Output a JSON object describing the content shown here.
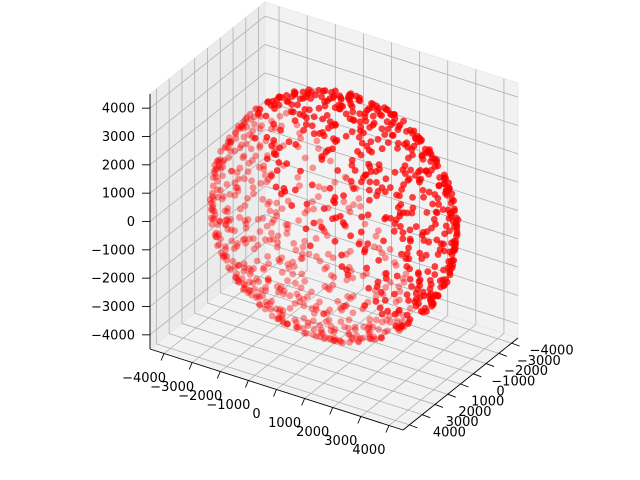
{
  "chart_data": {
    "type": "scatter",
    "projection": "3d",
    "title": "",
    "xlabel": "",
    "ylabel": "",
    "zlabel": "",
    "grid": true,
    "colors": {
      "marker": "#ff0000",
      "pane": "#f2f2f2",
      "pane_left": "#ebebeb",
      "grid": "#b0b0b0"
    },
    "shape": "sphere",
    "radius": 4000,
    "point_count": 1000,
    "marker_alpha": 0.75,
    "xlim": [
      -4500,
      4500
    ],
    "ylim": [
      -4500,
      4500
    ],
    "zlim": [
      -4500,
      4500
    ],
    "x_ticks": [
      -4000,
      -3000,
      -2000,
      -1000,
      0,
      1000,
      2000,
      3000,
      4000
    ],
    "y_ticks": [
      -4000,
      -3000,
      -2000,
      -1000,
      0,
      1000,
      2000,
      3000,
      4000
    ],
    "z_ticks": [
      -4000,
      -3000,
      -2000,
      -1000,
      0,
      1000,
      2000,
      3000,
      4000
    ],
    "x_tick_labels": [
      "−4000",
      "−3000",
      "−2000",
      "−1000",
      "0",
      "1000",
      "2000",
      "3000",
      "4000"
    ],
    "y_tick_labels": [
      "−4000",
      "−3000",
      "−2000",
      "−1000",
      "0",
      "1000",
      "2000",
      "3000",
      "4000"
    ],
    "z_tick_labels": [
      "−4000",
      "−3000",
      "−2000",
      "−1000",
      "0",
      "1000",
      "2000",
      "3000",
      "4000"
    ],
    "view": {
      "elev": 25,
      "azim": -60
    }
  }
}
